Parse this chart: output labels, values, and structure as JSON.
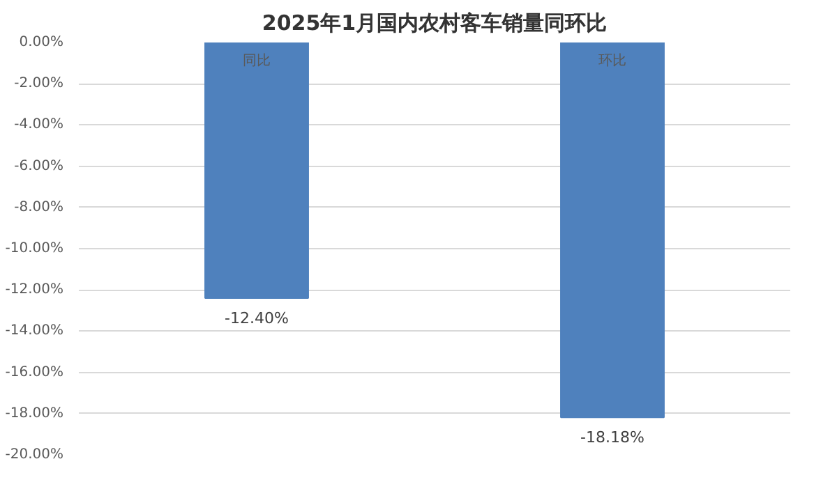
{
  "chart_data": {
    "type": "bar",
    "title": "2025年1月国内农村客车销量同环比",
    "categories": [
      "同比",
      "环比"
    ],
    "values": [
      -12.4,
      -18.18
    ],
    "value_labels": [
      "-12.40%",
      "-18.18%"
    ],
    "color": "#4f81bd",
    "ylim": [
      -20,
      0
    ],
    "yticks": [
      {
        "value": 0,
        "label": "0.00%"
      },
      {
        "value": -2,
        "label": "-2.00%"
      },
      {
        "value": -4,
        "label": "-4.00%"
      },
      {
        "value": -6,
        "label": "-6.00%"
      },
      {
        "value": -8,
        "label": "-8.00%"
      },
      {
        "value": -10,
        "label": "-10.00%"
      },
      {
        "value": -12,
        "label": "-12.00%"
      },
      {
        "value": -14,
        "label": "-14.00%"
      },
      {
        "value": -16,
        "label": "-16.00%"
      },
      {
        "value": -18,
        "label": "-18.00%"
      },
      {
        "value": -20,
        "label": "-20.00%"
      }
    ],
    "grid": "y"
  }
}
